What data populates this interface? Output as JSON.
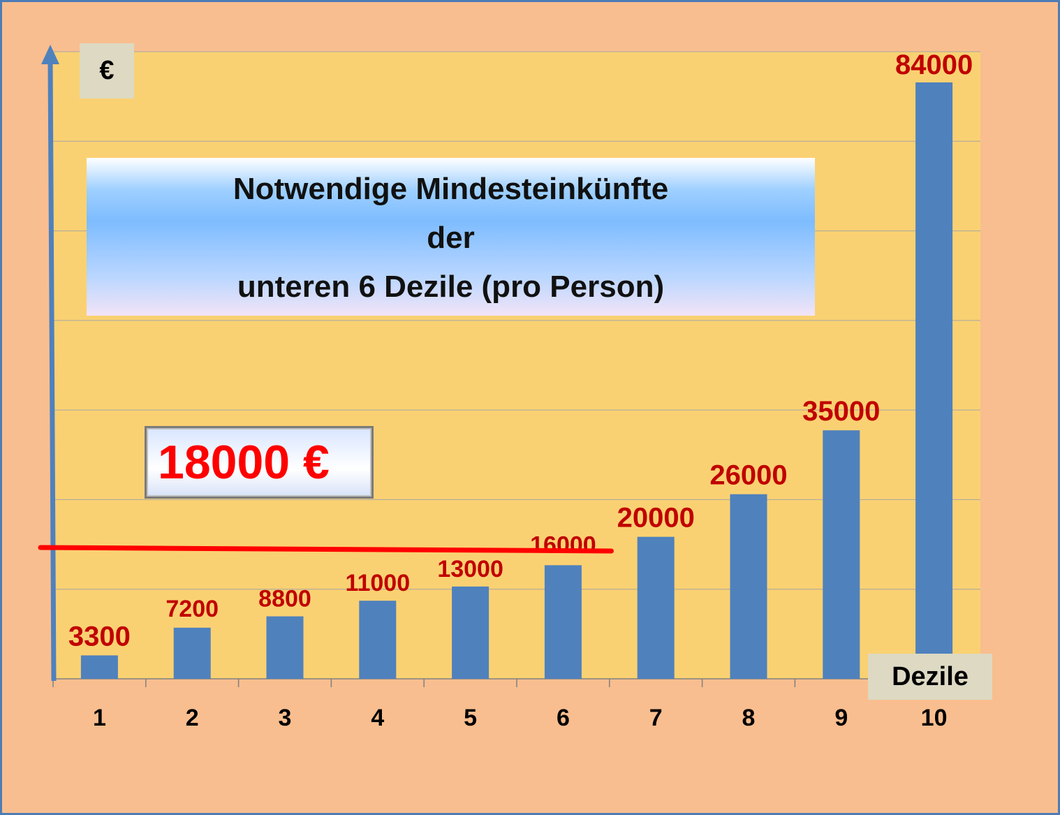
{
  "chart_data": {
    "type": "bar",
    "categories": [
      "1",
      "2",
      "3",
      "4",
      "5",
      "6",
      "7",
      "8",
      "9",
      "10"
    ],
    "values": [
      3300,
      7200,
      8800,
      11000,
      13000,
      16000,
      20000,
      26000,
      35000,
      84000
    ],
    "data_labels": [
      "3300",
      "7200",
      "8800",
      "11000",
      "13000",
      "16000",
      "20000",
      "26000",
      "35000",
      "84000"
    ],
    "title_lines": [
      "Notwendige Mindesteinkünfte",
      "der",
      "unteren 6 Dezile  (pro Person)"
    ],
    "xlabel": "Dezile",
    "ylabel": "€",
    "ylim": [
      0,
      84000
    ],
    "grid": true,
    "threshold": {
      "value": 18000,
      "label": "18000 €",
      "color": "#ff0000",
      "spans_categories": "1-6"
    },
    "colors": {
      "bar": "#4f81bd",
      "plot_bg": "#fad172",
      "page_bg": "#f9be8f",
      "data_label": "#c00000",
      "grid": "#a6a6a6",
      "axis_arrow": "#4f81bd"
    }
  }
}
